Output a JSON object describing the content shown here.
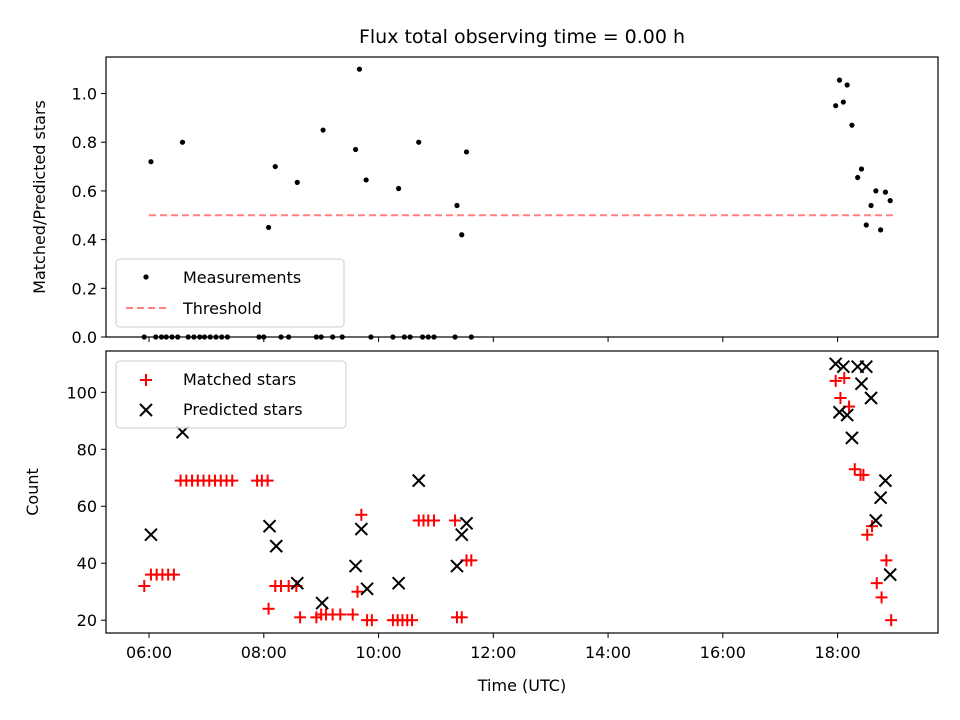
{
  "chart_data": [
    {
      "type": "scatter",
      "title": "Flux total observing time = 0.00 h",
      "xlabel": "",
      "ylabel": "Matched/Predicted stars",
      "x_unit": "hours UTC",
      "xlim": [
        5.25,
        19.75
      ],
      "ylim": [
        0.0,
        1.15
      ],
      "yticks": [
        "0.0",
        "0.2",
        "0.4",
        "0.6",
        "0.8",
        "1.0"
      ],
      "legend_position": "lower-left",
      "series": [
        {
          "name": "Measurements",
          "marker": "dot",
          "color": "#000000",
          "points": [
            {
              "x": "05:55",
              "y": 0.0
            },
            {
              "x": "06:02",
              "y": 0.72
            },
            {
              "x": "06:07",
              "y": 0.0
            },
            {
              "x": "06:13",
              "y": 0.0
            },
            {
              "x": "06:18",
              "y": 0.0
            },
            {
              "x": "06:24",
              "y": 0.0
            },
            {
              "x": "06:30",
              "y": 0.0
            },
            {
              "x": "06:35",
              "y": 0.8
            },
            {
              "x": "06:41",
              "y": 0.0
            },
            {
              "x": "06:47",
              "y": 0.0
            },
            {
              "x": "06:53",
              "y": 0.0
            },
            {
              "x": "06:58",
              "y": 0.0
            },
            {
              "x": "07:04",
              "y": 0.0
            },
            {
              "x": "07:10",
              "y": 0.0
            },
            {
              "x": "07:16",
              "y": 0.0
            },
            {
              "x": "07:22",
              "y": 0.0
            },
            {
              "x": "07:55",
              "y": 0.0
            },
            {
              "x": "08:00",
              "y": 0.0
            },
            {
              "x": "08:05",
              "y": 0.45
            },
            {
              "x": "08:12",
              "y": 0.7
            },
            {
              "x": "08:18",
              "y": 0.0
            },
            {
              "x": "08:26",
              "y": 0.0
            },
            {
              "x": "08:35",
              "y": 0.635
            },
            {
              "x": "08:55",
              "y": 0.0
            },
            {
              "x": "09:00",
              "y": 0.0
            },
            {
              "x": "09:02",
              "y": 0.85
            },
            {
              "x": "09:12",
              "y": 0.0
            },
            {
              "x": "09:22",
              "y": 0.0
            },
            {
              "x": "09:36",
              "y": 0.77
            },
            {
              "x": "09:40",
              "y": 1.1
            },
            {
              "x": "09:47",
              "y": 0.645
            },
            {
              "x": "09:52",
              "y": 0.0
            },
            {
              "x": "10:15",
              "y": 0.0
            },
            {
              "x": "10:21",
              "y": 0.61
            },
            {
              "x": "10:27",
              "y": 0.0
            },
            {
              "x": "10:33",
              "y": 0.0
            },
            {
              "x": "10:42",
              "y": 0.8
            },
            {
              "x": "10:46",
              "y": 0.0
            },
            {
              "x": "10:52",
              "y": 0.0
            },
            {
              "x": "10:58",
              "y": 0.0
            },
            {
              "x": "11:20",
              "y": 0.0
            },
            {
              "x": "11:22",
              "y": 0.54
            },
            {
              "x": "11:27",
              "y": 0.42
            },
            {
              "x": "11:32",
              "y": 0.76
            },
            {
              "x": "11:37",
              "y": 0.0
            },
            {
              "x": "17:58",
              "y": 0.95
            },
            {
              "x": "18:02",
              "y": 1.055
            },
            {
              "x": "18:06",
              "y": 0.965
            },
            {
              "x": "18:10",
              "y": 1.035
            },
            {
              "x": "18:15",
              "y": 0.87
            },
            {
              "x": "18:21",
              "y": 0.655
            },
            {
              "x": "18:25",
              "y": 0.69
            },
            {
              "x": "18:30",
              "y": 0.46
            },
            {
              "x": "18:35",
              "y": 0.54
            },
            {
              "x": "18:40",
              "y": 0.6
            },
            {
              "x": "18:45",
              "y": 0.44
            },
            {
              "x": "18:50",
              "y": 0.595
            },
            {
              "x": "18:55",
              "y": 0.56
            }
          ]
        },
        {
          "name": "Threshold",
          "type": "line",
          "style": "dashed",
          "color": "#ff8080",
          "points": [
            {
              "x": "06:00",
              "y": 0.5
            },
            {
              "x": "19:00",
              "y": 0.5
            }
          ]
        }
      ]
    },
    {
      "type": "scatter",
      "title": "",
      "xlabel": "Time (UTC)",
      "ylabel": "Count",
      "xlim": [
        5.25,
        19.75
      ],
      "ylim": [
        15.5,
        114.5
      ],
      "xticks": [
        "06:00",
        "08:00",
        "10:00",
        "12:00",
        "14:00",
        "16:00",
        "18:00"
      ],
      "yticks": [
        "20",
        "40",
        "60",
        "80",
        "100"
      ],
      "legend_position": "upper-left",
      "series": [
        {
          "name": "Matched stars",
          "marker": "plus",
          "color": "#ff0000",
          "points": [
            {
              "x": "05:55",
              "y": 32
            },
            {
              "x": "06:02",
              "y": 36
            },
            {
              "x": "06:08",
              "y": 36
            },
            {
              "x": "06:14",
              "y": 36
            },
            {
              "x": "06:20",
              "y": 36
            },
            {
              "x": "06:26",
              "y": 36
            },
            {
              "x": "06:33",
              "y": 69
            },
            {
              "x": "06:39",
              "y": 69
            },
            {
              "x": "06:45",
              "y": 69
            },
            {
              "x": "06:51",
              "y": 69
            },
            {
              "x": "06:57",
              "y": 69
            },
            {
              "x": "07:03",
              "y": 69
            },
            {
              "x": "07:09",
              "y": 69
            },
            {
              "x": "07:15",
              "y": 69
            },
            {
              "x": "07:21",
              "y": 69
            },
            {
              "x": "07:27",
              "y": 69
            },
            {
              "x": "07:53",
              "y": 69
            },
            {
              "x": "07:58",
              "y": 69
            },
            {
              "x": "08:04",
              "y": 69
            },
            {
              "x": "08:05",
              "y": 24
            },
            {
              "x": "08:12",
              "y": 32
            },
            {
              "x": "08:18",
              "y": 32
            },
            {
              "x": "08:26",
              "y": 32
            },
            {
              "x": "08:34",
              "y": 32
            },
            {
              "x": "08:38",
              "y": 21
            },
            {
              "x": "08:55",
              "y": 21
            },
            {
              "x": "09:00",
              "y": 22
            },
            {
              "x": "09:05",
              "y": 22
            },
            {
              "x": "09:12",
              "y": 22
            },
            {
              "x": "09:20",
              "y": 22
            },
            {
              "x": "09:33",
              "y": 22
            },
            {
              "x": "09:38",
              "y": 30
            },
            {
              "x": "09:42",
              "y": 57
            },
            {
              "x": "09:48",
              "y": 20
            },
            {
              "x": "09:53",
              "y": 20
            },
            {
              "x": "10:15",
              "y": 20
            },
            {
              "x": "10:20",
              "y": 20
            },
            {
              "x": "10:25",
              "y": 20
            },
            {
              "x": "10:30",
              "y": 20
            },
            {
              "x": "10:35",
              "y": 20
            },
            {
              "x": "10:42",
              "y": 55
            },
            {
              "x": "10:47",
              "y": 55
            },
            {
              "x": "10:52",
              "y": 55
            },
            {
              "x": "10:58",
              "y": 55
            },
            {
              "x": "11:20",
              "y": 55
            },
            {
              "x": "11:22",
              "y": 21
            },
            {
              "x": "11:27",
              "y": 21
            },
            {
              "x": "11:32",
              "y": 41
            },
            {
              "x": "11:37",
              "y": 41
            },
            {
              "x": "17:58",
              "y": 104
            },
            {
              "x": "18:03",
              "y": 98
            },
            {
              "x": "18:07",
              "y": 105
            },
            {
              "x": "18:12",
              "y": 95
            },
            {
              "x": "18:18",
              "y": 73
            },
            {
              "x": "18:24",
              "y": 71
            },
            {
              "x": "18:27",
              "y": 71
            },
            {
              "x": "18:31",
              "y": 50
            },
            {
              "x": "18:36",
              "y": 53
            },
            {
              "x": "18:41",
              "y": 33
            },
            {
              "x": "18:46",
              "y": 28
            },
            {
              "x": "18:51",
              "y": 41
            },
            {
              "x": "18:56",
              "y": 20
            }
          ]
        },
        {
          "name": "Predicted stars",
          "marker": "x",
          "color": "#000000",
          "points": [
            {
              "x": "06:02",
              "y": 50
            },
            {
              "x": "06:35",
              "y": 86
            },
            {
              "x": "08:06",
              "y": 53
            },
            {
              "x": "08:13",
              "y": 46
            },
            {
              "x": "08:35",
              "y": 33
            },
            {
              "x": "09:01",
              "y": 26
            },
            {
              "x": "09:36",
              "y": 39
            },
            {
              "x": "09:42",
              "y": 52
            },
            {
              "x": "09:48",
              "y": 31
            },
            {
              "x": "10:21",
              "y": 33
            },
            {
              "x": "10:42",
              "y": 69
            },
            {
              "x": "11:22",
              "y": 39
            },
            {
              "x": "11:27",
              "y": 50
            },
            {
              "x": "11:32",
              "y": 54
            },
            {
              "x": "17:58",
              "y": 110
            },
            {
              "x": "18:02",
              "y": 93
            },
            {
              "x": "18:06",
              "y": 109
            },
            {
              "x": "18:10",
              "y": 92
            },
            {
              "x": "18:15",
              "y": 84
            },
            {
              "x": "18:21",
              "y": 109
            },
            {
              "x": "18:25",
              "y": 103
            },
            {
              "x": "18:30",
              "y": 109
            },
            {
              "x": "18:35",
              "y": 98
            },
            {
              "x": "18:40",
              "y": 55
            },
            {
              "x": "18:45",
              "y": 63
            },
            {
              "x": "18:50",
              "y": 69
            },
            {
              "x": "18:55",
              "y": 36
            }
          ]
        }
      ]
    }
  ]
}
